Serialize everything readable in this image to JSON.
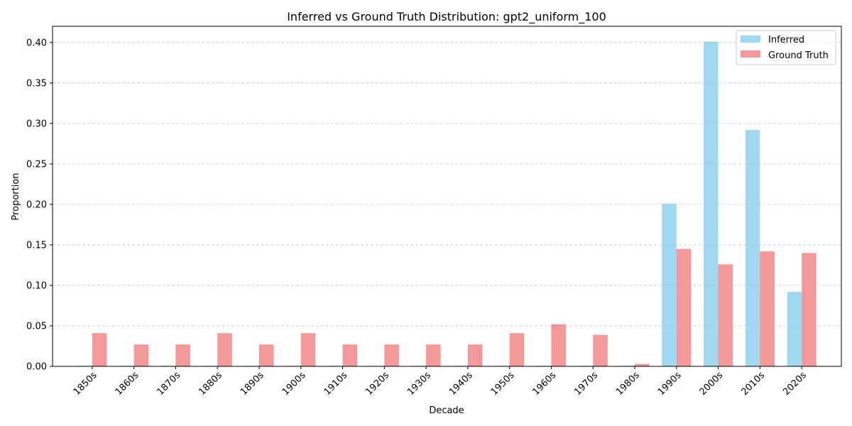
{
  "chart_data": {
    "type": "bar",
    "title": "Inferred vs Ground Truth Distribution: gpt2_uniform_100",
    "xlabel": "Decade",
    "ylabel": "Proportion",
    "ylim": [
      0,
      0.42
    ],
    "yticks": [
      "0.00",
      "0.05",
      "0.10",
      "0.15",
      "0.20",
      "0.25",
      "0.30",
      "0.35",
      "0.40"
    ],
    "grid": "y-dashed",
    "legend_position": "top-right",
    "categories": [
      "1850s",
      "1860s",
      "1870s",
      "1880s",
      "1890s",
      "1900s",
      "1910s",
      "1920s",
      "1930s",
      "1940s",
      "1950s",
      "1960s",
      "1970s",
      "1980s",
      "1990s",
      "2000s",
      "2010s",
      "2020s"
    ],
    "series": [
      {
        "name": "Inferred",
        "color": "#87ceeb",
        "values": [
          0.0005,
          0.0005,
          0.0005,
          0.0005,
          0.0005,
          0.0005,
          0.0005,
          0.0005,
          0.0005,
          0.0005,
          0.0005,
          0.0005,
          0.0005,
          0.0005,
          0.201,
          0.401,
          0.292,
          0.092
        ]
      },
      {
        "name": "Ground Truth",
        "color": "#f08080",
        "values": [
          0.041,
          0.027,
          0.027,
          0.041,
          0.027,
          0.041,
          0.027,
          0.027,
          0.027,
          0.027,
          0.041,
          0.052,
          0.039,
          0.003,
          0.145,
          0.126,
          0.142,
          0.14
        ]
      }
    ]
  }
}
